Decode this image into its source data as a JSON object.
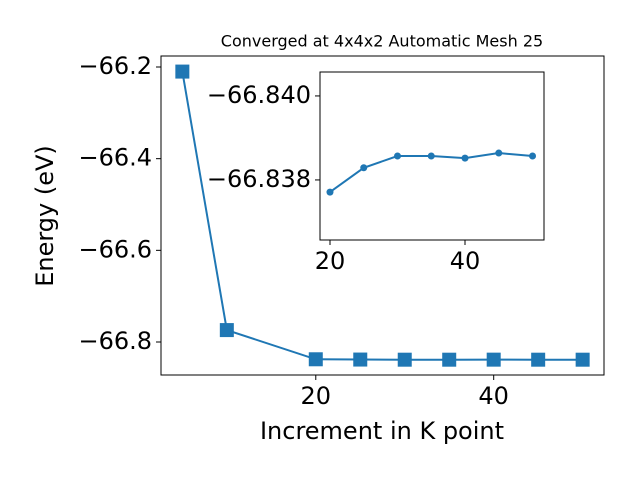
{
  "chart_data": [
    {
      "type": "line",
      "title": "Converged at 4x4x2 Automatic Mesh 25",
      "x_label": "Increment in K point",
      "y_label": "Energy (eV)",
      "x": [
        5,
        10,
        20,
        25,
        30,
        35,
        40,
        45,
        50
      ],
      "values": [
        -66.21,
        -66.774,
        -66.8377,
        -66.8383,
        -66.8386,
        -66.8386,
        -66.8385,
        -66.8386,
        -66.8386
      ],
      "color": "#1f77b4",
      "marker": "square",
      "xlim": [
        2.6,
        52.4
      ],
      "ylim": [
        -66.872,
        -66.176
      ],
      "xticks": [
        20,
        40
      ],
      "yticks": [
        {
          "value": -66.8,
          "label": "−66.8"
        },
        {
          "value": -66.6,
          "label": "−66.6"
        },
        {
          "value": -66.4,
          "label": "−66.4"
        },
        {
          "value": -66.2,
          "label": "−66.2"
        }
      ]
    },
    {
      "type": "line",
      "x": [
        20,
        25,
        30,
        35,
        40,
        45,
        50
      ],
      "values": [
        -66.83771,
        -66.83829,
        -66.83857,
        -66.83857,
        -66.83852,
        -66.83864,
        -66.83857
      ],
      "color": "#1f77b4",
      "marker": "circle",
      "xlim": [
        18.52,
        51.7
      ],
      "ylim": [
        -66.83657,
        -66.84057
      ],
      "xticks": [
        20,
        40
      ],
      "yticks": [
        {
          "value": -66.838,
          "label": "−66.838"
        },
        {
          "value": -66.84,
          "label": "−66.840"
        }
      ]
    }
  ]
}
